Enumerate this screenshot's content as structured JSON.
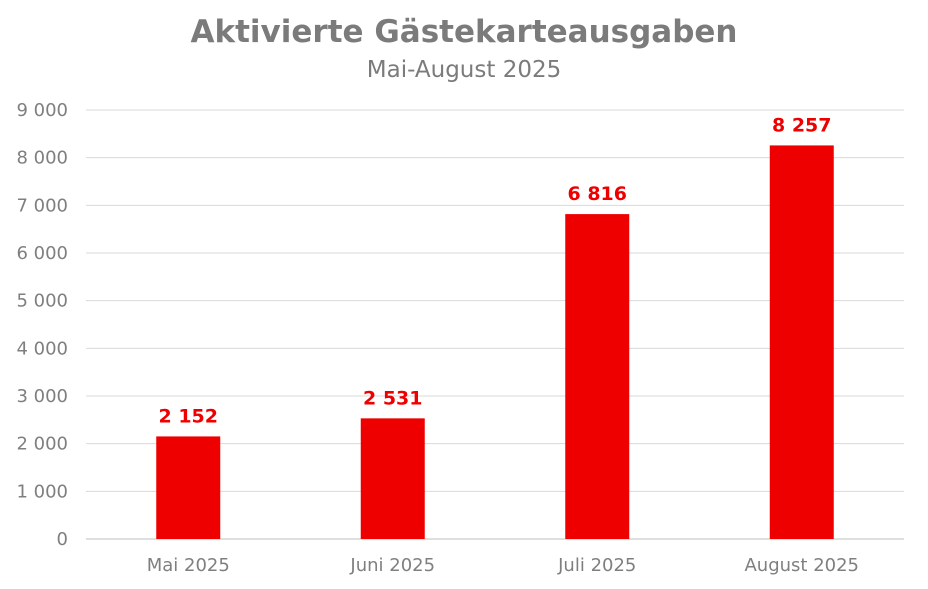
{
  "chart_data": {
    "type": "bar",
    "title": "Aktivierte Gästekarteausgaben",
    "subtitle": "Mai-August 2025",
    "categories": [
      "Mai 2025",
      "Juni 2025",
      "Juli 2025",
      "August 2025"
    ],
    "values": [
      2152,
      2531,
      6816,
      8257
    ],
    "value_labels": [
      "2 152",
      "2 531",
      "6 816",
      "8 257"
    ],
    "ylim": [
      0,
      9000
    ],
    "yticks": [
      0,
      1000,
      2000,
      3000,
      4000,
      5000,
      6000,
      7000,
      8000,
      9000
    ],
    "ytick_labels": [
      "0",
      "1 000",
      "2 000",
      "3 000",
      "4 000",
      "5 000",
      "6 000",
      "7 000",
      "8 000",
      "9 000"
    ],
    "xlabel": "",
    "ylabel": "",
    "grid": true,
    "legend": "none",
    "colors": {
      "bar": "#ee0000",
      "data_label": "#ee0000",
      "grid": "#d9d9d9",
      "text": "#7f7f7f"
    }
  }
}
